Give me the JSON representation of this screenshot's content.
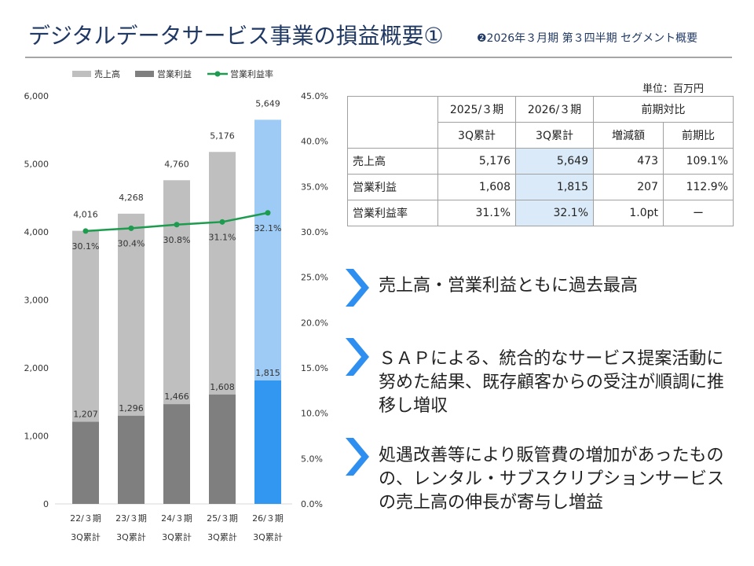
{
  "header": {
    "title": "デジタルデータサービス事業の損益概要①",
    "subtitle": "❷2026年３月期 第３四半期 セグメント概要"
  },
  "colors": {
    "title": "#1f3864",
    "revenue_bar": "#bfbfbf",
    "revenue_bar_current": "#9dcbf5",
    "profit_bar": "#7f7f7f",
    "profit_bar_current": "#3197f0",
    "margin_line": "#1d9b4e",
    "arrow": "#2e8ff0",
    "highlight": "#dbeaf8"
  },
  "chart_data": {
    "type": "bar+line",
    "categories": [
      "22/３期\n3Q累計",
      "23/３期\n3Q累計",
      "24/３期\n3Q累計",
      "25/３期\n3Q累計",
      "26/３期\n3Q累計"
    ],
    "series": [
      {
        "name": "売上高",
        "type": "bar",
        "values": [
          4016,
          4268,
          4760,
          5176,
          5649
        ]
      },
      {
        "name": "営業利益",
        "type": "bar",
        "values": [
          1207,
          1296,
          1466,
          1608,
          1815
        ]
      },
      {
        "name": "営業利益率",
        "type": "line",
        "axis": "right",
        "values": [
          30.1,
          30.4,
          30.8,
          31.1,
          32.1
        ]
      }
    ],
    "value_labels": {
      "revenue": [
        "4,016",
        "4,268",
        "4,760",
        "5,176",
        "5,649"
      ],
      "profit": [
        "1,207",
        "1,296",
        "1,466",
        "1,608",
        "1,815"
      ],
      "margin": [
        "30.1%",
        "30.4%",
        "30.8%",
        "31.1%",
        "32.1%"
      ]
    },
    "y_left": {
      "min": 0,
      "max": 6000,
      "ticks": [
        "0",
        "1,000",
        "2,000",
        "3,000",
        "4,000",
        "5,000",
        "6,000"
      ]
    },
    "y_right": {
      "min": 0,
      "max": 45,
      "ticks": [
        "0.0%",
        "5.0%",
        "10.0%",
        "15.0%",
        "20.0%",
        "25.0%",
        "30.0%",
        "35.0%",
        "40.0%",
        "45.0%"
      ]
    },
    "legend": [
      "売上高",
      "営業利益",
      "営業利益率"
    ],
    "legend_position": "top",
    "grid": false
  },
  "table": {
    "unit": "単位：百万円",
    "header_row1": [
      "",
      "2025/３期",
      "2026/３期",
      "前期対比"
    ],
    "header_row2": [
      "3Q累計",
      "3Q累計",
      "増減額",
      "前期比"
    ],
    "rows": [
      {
        "label": "売上高",
        "prev": "5,176",
        "curr": "5,649",
        "diff": "473",
        "ratio": "109.1%"
      },
      {
        "label": "営業利益",
        "prev": "1,608",
        "curr": "1,815",
        "diff": "207",
        "ratio": "112.9%"
      },
      {
        "label": "営業利益率",
        "prev": "31.1%",
        "curr": "32.1%",
        "diff": "1.0pt",
        "ratio": "ー"
      }
    ]
  },
  "points": [
    {
      "text": "売上高・営業利益ともに過去最高"
    },
    {
      "text": "ＳＡＰによる、統合的なサービス提案活動に努めた結果、既存顧客からの受注が順調に推移し増収"
    },
    {
      "text": "処遇改善等により販管費の増加があったものの、レンタル・サブスクリプションサービスの売上高の伸長が寄与し増益"
    }
  ]
}
